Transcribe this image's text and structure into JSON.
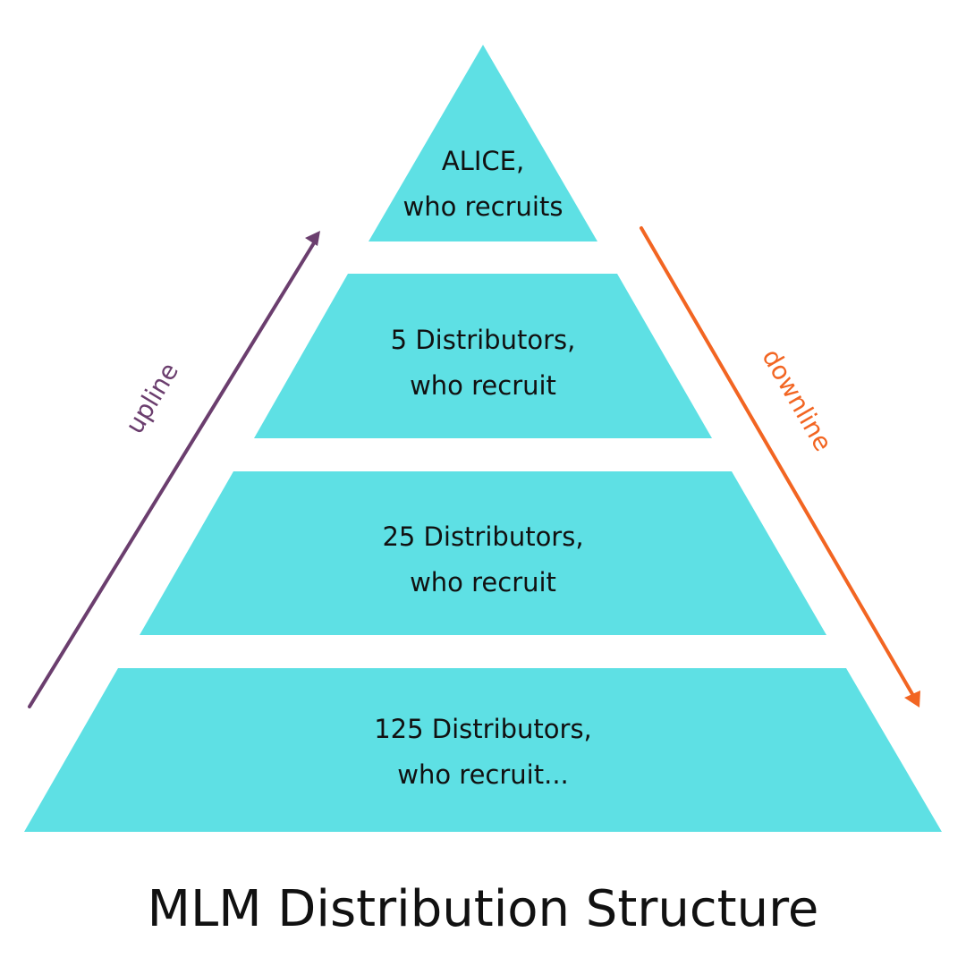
{
  "title": "MLM Distribution Structure",
  "colors": {
    "tier_fill": "#5ee0e4",
    "upline": "#6b3e6e",
    "downline": "#f26522",
    "text": "#111111"
  },
  "tiers": [
    {
      "line1": "ALICE,",
      "line2": "who recruits"
    },
    {
      "line1": "5 Distributors,",
      "line2": "who recruit"
    },
    {
      "line1": "25 Distributors,",
      "line2": "who recruit"
    },
    {
      "line1": "125 Distributors,",
      "line2": "who recruit..."
    }
  ],
  "arrows": {
    "upline": {
      "label": "upline",
      "direction": "up"
    },
    "downline": {
      "label": "downline",
      "direction": "down"
    }
  }
}
